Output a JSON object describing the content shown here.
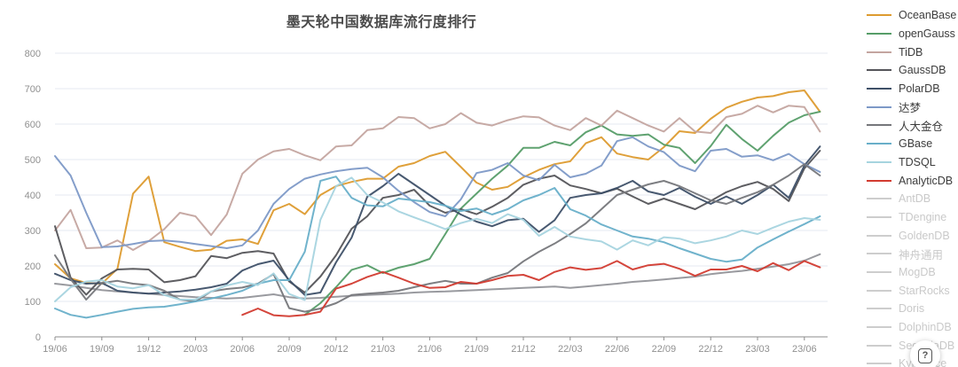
{
  "help_button": {
    "glyph": "?"
  },
  "chart_data": {
    "type": "line",
    "title": "墨天轮中国数据库流行度排行",
    "xlabel": "",
    "ylabel": "",
    "x_interval": "monthly",
    "x_start": "19/06",
    "x_end": "23/07",
    "x_tick_labels": [
      "19/06",
      "19/09",
      "19/12",
      "20/03",
      "20/06",
      "20/09",
      "20/12",
      "21/03",
      "21/06",
      "21/09",
      "21/12",
      "22/03",
      "22/06",
      "22/09",
      "22/12",
      "23/03",
      "23/06"
    ],
    "ylim": [
      0,
      800
    ],
    "y_ticks": [
      0,
      100,
      200,
      300,
      400,
      500,
      600,
      700,
      800
    ],
    "grid": true,
    "legend_position": "right",
    "axis_color": "#8c8c8c",
    "grid_color": "#e4eaf2",
    "tick_label_color": "#909090",
    "inactive_swatch_color": "#cdcdcd",
    "series": [
      {
        "name": "OceanBase",
        "color": "#dd9b2f",
        "active": true,
        "values": [
          205,
          165,
          152,
          150,
          192,
          404,
          452,
          267,
          254,
          242,
          246,
          271,
          275,
          262,
          357,
          375,
          346,
          400,
          425,
          437,
          446,
          446,
          480,
          490,
          510,
          522,
          479,
          435,
          415,
          423,
          450,
          471,
          487,
          495,
          546,
          563,
          517,
          507,
          500,
          535,
          580,
          575,
          615,
          646,
          663,
          675,
          679,
          690,
          695,
          635
        ]
      },
      {
        "name": "openGauss",
        "color": "#569d68",
        "active": true,
        "values": [
          null,
          null,
          null,
          null,
          null,
          null,
          null,
          null,
          null,
          null,
          null,
          null,
          null,
          null,
          null,
          null,
          62,
          95,
          140,
          189,
          202,
          180,
          195,
          205,
          220,
          290,
          362,
          404,
          446,
          483,
          533,
          533,
          550,
          540,
          577,
          596,
          571,
          567,
          571,
          542,
          533,
          490,
          538,
          598,
          558,
          525,
          567,
          604,
          625,
          635
        ]
      },
      {
        "name": "TiDB",
        "color": "#c4a5a0",
        "active": true,
        "values": [
          300,
          358,
          250,
          252,
          272,
          245,
          270,
          304,
          350,
          340,
          287,
          345,
          460,
          500,
          523,
          530,
          512,
          498,
          537,
          540,
          583,
          588,
          620,
          617,
          588,
          600,
          631,
          604,
          596,
          611,
          622,
          619,
          596,
          583,
          617,
          596,
          638,
          617,
          596,
          579,
          617,
          579,
          575,
          620,
          629,
          652,
          633,
          652,
          648,
          579
        ]
      },
      {
        "name": "GaussDB",
        "color": "#55555a",
        "active": true,
        "values": [
          312,
          167,
          119,
          165,
          190,
          192,
          190,
          154,
          160,
          171,
          228,
          222,
          237,
          242,
          235,
          156,
          125,
          170,
          230,
          305,
          340,
          392,
          400,
          415,
          370,
          350,
          360,
          346,
          367,
          392,
          429,
          446,
          455,
          427,
          417,
          405,
          418,
          396,
          375,
          390,
          375,
          360,
          383,
          408,
          425,
          437,
          417,
          383,
          475,
          525
        ]
      },
      {
        "name": "PolarDB",
        "color": "#3e5068",
        "active": true,
        "values": [
          178,
          160,
          150,
          152,
          130,
          125,
          122,
          125,
          128,
          133,
          140,
          150,
          187,
          205,
          215,
          160,
          118,
          125,
          210,
          280,
          395,
          425,
          460,
          430,
          400,
          370,
          345,
          325,
          312,
          329,
          333,
          296,
          329,
          392,
          400,
          405,
          420,
          440,
          410,
          400,
          420,
          395,
          375,
          396,
          375,
          400,
          429,
          392,
          483,
          537
        ]
      },
      {
        "name": "达梦",
        "color": "#7d99c7",
        "active": true,
        "values": [
          510,
          455,
          350,
          253,
          255,
          262,
          270,
          272,
          268,
          262,
          256,
          250,
          258,
          300,
          375,
          417,
          446,
          458,
          467,
          473,
          477,
          450,
          412,
          380,
          352,
          340,
          388,
          462,
          471,
          490,
          455,
          442,
          485,
          450,
          460,
          483,
          552,
          563,
          537,
          521,
          483,
          467,
          525,
          530,
          508,
          512,
          498,
          516,
          487,
          465
        ]
      },
      {
        "name": "人大金仓",
        "color": "#76777b",
        "active": true,
        "values": [
          230,
          163,
          105,
          152,
          158,
          150,
          146,
          130,
          105,
          100,
          128,
          135,
          139,
          150,
          177,
          81,
          71,
          80,
          95,
          118,
          122,
          125,
          130,
          140,
          150,
          158,
          150,
          150,
          167,
          180,
          213,
          240,
          263,
          290,
          320,
          360,
          400,
          415,
          430,
          440,
          425,
          405,
          385,
          375,
          392,
          408,
          429,
          455,
          487,
          455
        ]
      },
      {
        "name": "GBase",
        "color": "#68afc9",
        "active": true,
        "values": [
          80,
          62,
          54,
          62,
          71,
          79,
          83,
          85,
          92,
          100,
          108,
          118,
          130,
          150,
          160,
          160,
          240,
          440,
          452,
          392,
          371,
          368,
          390,
          385,
          380,
          370,
          355,
          362,
          345,
          360,
          385,
          400,
          420,
          360,
          342,
          317,
          300,
          283,
          277,
          267,
          250,
          235,
          220,
          212,
          218,
          252,
          275,
          297,
          318,
          340
        ]
      },
      {
        "name": "TDSQL",
        "color": "#a6d4df",
        "active": true,
        "values": [
          100,
          140,
          156,
          160,
          142,
          137,
          146,
          118,
          105,
          105,
          128,
          145,
          155,
          146,
          179,
          121,
          104,
          330,
          425,
          449,
          400,
          379,
          354,
          337,
          321,
          304,
          321,
          333,
          321,
          346,
          330,
          285,
          310,
          283,
          275,
          269,
          246,
          272,
          258,
          281,
          277,
          264,
          272,
          283,
          300,
          290,
          308,
          325,
          335,
          330
        ]
      },
      {
        "name": "AnalyticDB",
        "color": "#d23b30",
        "active": true,
        "values": [
          null,
          null,
          null,
          null,
          null,
          null,
          null,
          null,
          null,
          null,
          null,
          null,
          62,
          80,
          61,
          58,
          62,
          71,
          136,
          150,
          169,
          183,
          167,
          150,
          138,
          140,
          155,
          150,
          160,
          172,
          175,
          160,
          183,
          196,
          189,
          194,
          214,
          190,
          202,
          206,
          192,
          172,
          190,
          190,
          200,
          185,
          208,
          188,
          214,
          196
        ]
      },
      {
        "name": "AntDB",
        "color": null,
        "active": false,
        "values": []
      },
      {
        "name": "TDengine",
        "color": "#94959a",
        "active": false,
        "legend_muted_but_drawn": true,
        "values": [
          150,
          145,
          138,
          132,
          128,
          125,
          122,
          118,
          115,
          112,
          110,
          108,
          110,
          115,
          120,
          112,
          108,
          110,
          113,
          116,
          118,
          120,
          122,
          125,
          127,
          128,
          130,
          132,
          134,
          136,
          138,
          140,
          142,
          138,
          142,
          146,
          150,
          155,
          158,
          162,
          166,
          170,
          177,
          182,
          186,
          192,
          198,
          205,
          215,
          233
        ]
      },
      {
        "name": "GoldenDB",
        "color": null,
        "active": false,
        "values": []
      },
      {
        "name": "神舟通用",
        "color": null,
        "active": false,
        "values": []
      },
      {
        "name": "MogDB",
        "color": null,
        "active": false,
        "values": []
      },
      {
        "name": "StarRocks",
        "color": null,
        "active": false,
        "values": []
      },
      {
        "name": "Doris",
        "color": null,
        "active": false,
        "values": []
      },
      {
        "name": "DolphinDB",
        "color": null,
        "active": false,
        "values": []
      },
      {
        "name": "SequoiaDB",
        "color": null,
        "active": false,
        "values": []
      },
      {
        "name": "Kyligence",
        "color": null,
        "active": false,
        "values": []
      }
    ]
  }
}
